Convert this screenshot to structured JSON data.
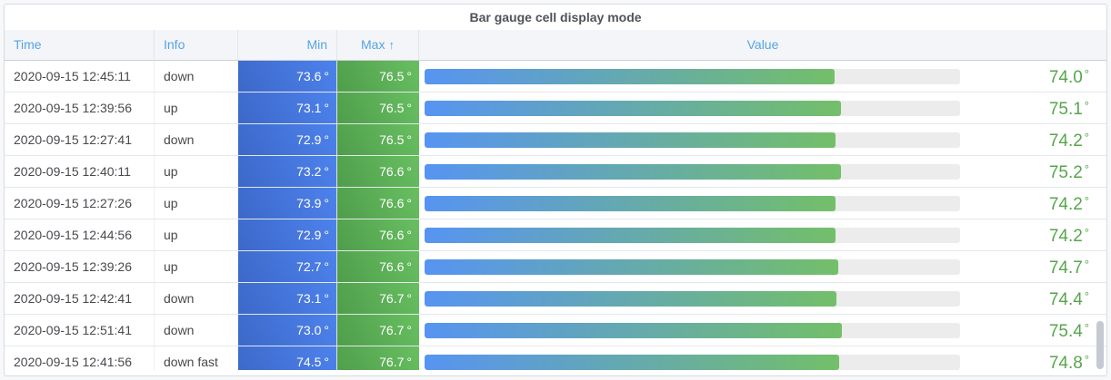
{
  "panel": {
    "title": "Bar gauge cell display mode"
  },
  "table": {
    "unit": "°",
    "sort_indicator": "↑",
    "columns": [
      {
        "label": "Time",
        "align": "left"
      },
      {
        "label": "Info",
        "align": "left"
      },
      {
        "label": "Min",
        "align": "right"
      },
      {
        "label": "Max",
        "align": "center",
        "sorted": "ascending"
      },
      {
        "label": "Value",
        "align": "center"
      }
    ],
    "rows": [
      {
        "time": "2020-09-15 12:45:11",
        "info": "down",
        "min": "73.6",
        "max": "76.5",
        "value": "74.0",
        "fill_pct": 76.5
      },
      {
        "time": "2020-09-15 12:39:56",
        "info": "up",
        "min": "73.1",
        "max": "76.5",
        "value": "75.1",
        "fill_pct": 77.7
      },
      {
        "time": "2020-09-15 12:27:41",
        "info": "down",
        "min": "72.9",
        "max": "76.5",
        "value": "74.2",
        "fill_pct": 76.7
      },
      {
        "time": "2020-09-15 12:40:11",
        "info": "up",
        "min": "73.2",
        "max": "76.6",
        "value": "75.2",
        "fill_pct": 77.8
      },
      {
        "time": "2020-09-15 12:27:26",
        "info": "up",
        "min": "73.9",
        "max": "76.6",
        "value": "74.2",
        "fill_pct": 76.7
      },
      {
        "time": "2020-09-15 12:44:56",
        "info": "up",
        "min": "72.9",
        "max": "76.6",
        "value": "74.2",
        "fill_pct": 76.7
      },
      {
        "time": "2020-09-15 12:39:26",
        "info": "up",
        "min": "72.7",
        "max": "76.6",
        "value": "74.7",
        "fill_pct": 77.3
      },
      {
        "time": "2020-09-15 12:42:41",
        "info": "down",
        "min": "73.1",
        "max": "76.7",
        "value": "74.4",
        "fill_pct": 76.9
      },
      {
        "time": "2020-09-15 12:51:41",
        "info": "down",
        "min": "73.0",
        "max": "76.7",
        "value": "75.4",
        "fill_pct": 78.0
      },
      {
        "time": "2020-09-15 12:41:56",
        "info": "down fast",
        "min": "74.5",
        "max": "76.7",
        "value": "74.8",
        "fill_pct": 77.4
      }
    ]
  },
  "colors": {
    "header_text": "#57a3e5",
    "value_text": "#56a64b",
    "min_cell_bg": "#4374dd",
    "max_cell_bg": "#5aae55",
    "bar_start": "#5794f2",
    "bar_end": "#73bf69",
    "bar_track": "#ececec"
  }
}
